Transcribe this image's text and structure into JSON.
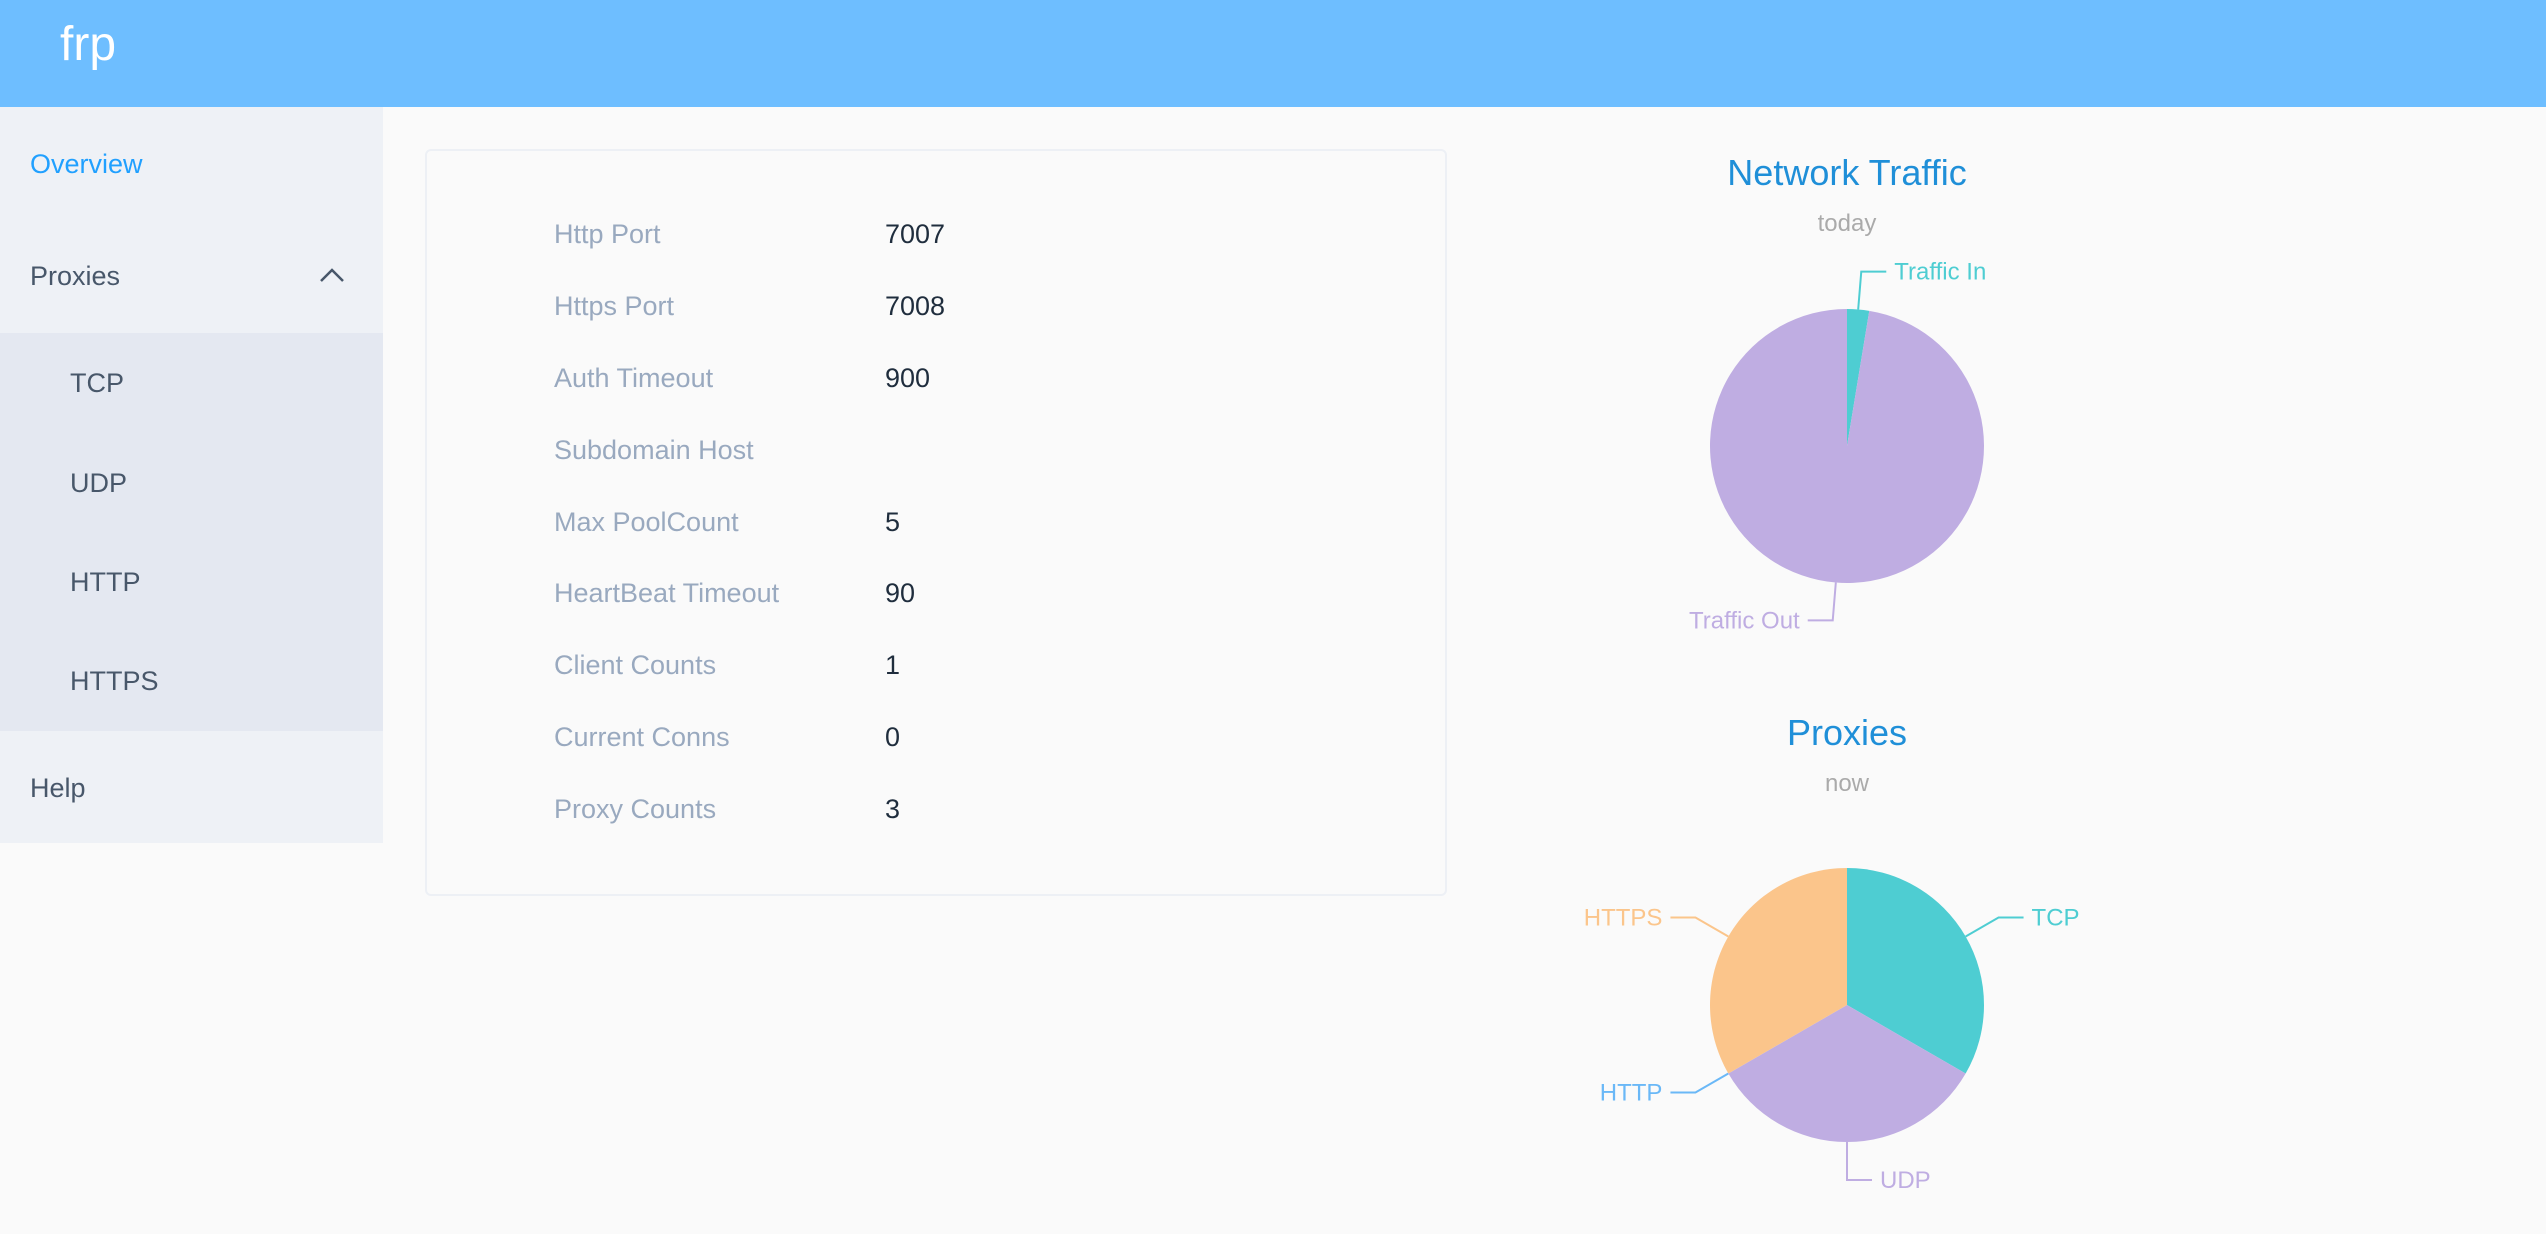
{
  "header": {
    "title": "frp",
    "color": "#6ebeff"
  },
  "sidebar": {
    "items": [
      {
        "label": "Overview",
        "active": true
      },
      {
        "label": "Proxies",
        "expanded": true,
        "children": [
          "TCP",
          "UDP",
          "HTTP",
          "HTTPS"
        ]
      },
      {
        "label": "Help"
      }
    ]
  },
  "server_info": [
    {
      "label": "Http Port",
      "value": "7007"
    },
    {
      "label": "Https Port",
      "value": "7008"
    },
    {
      "label": "Auth Timeout",
      "value": "900"
    },
    {
      "label": "Subdomain Host",
      "value": ""
    },
    {
      "label": "Max PoolCount",
      "value": "5"
    },
    {
      "label": "HeartBeat Timeout",
      "value": "90"
    },
    {
      "label": "Client Counts",
      "value": "1"
    },
    {
      "label": "Current Conns",
      "value": "0"
    },
    {
      "label": "Proxy Counts",
      "value": "3"
    }
  ],
  "chart_data": [
    {
      "type": "pie",
      "title": "Network Traffic",
      "subtitle": "today",
      "categories": [
        "Traffic In",
        "Traffic Out"
      ],
      "values": [
        2.6,
        97.4
      ],
      "colors": [
        "#4ecdd2",
        "#bfadE2"
      ]
    },
    {
      "type": "pie",
      "title": "Proxies",
      "subtitle": "now",
      "categories": [
        "TCP",
        "UDP",
        "HTTP",
        "HTTPS"
      ],
      "values": [
        1,
        1,
        0,
        1
      ],
      "colors": [
        "#4ecdd2",
        "#bfade2",
        "#6ab8f7",
        "#fbc58b"
      ]
    }
  ]
}
